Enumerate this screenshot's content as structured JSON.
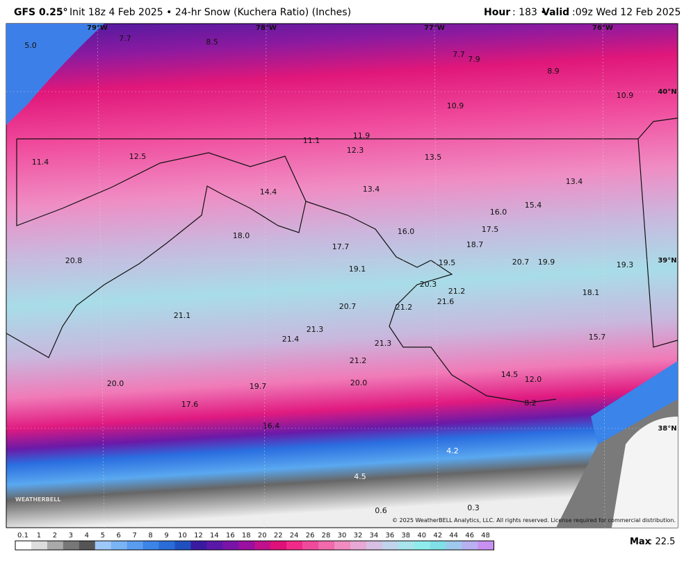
{
  "header": {
    "title_bold": "GFS 0.25°",
    "title_rest": "Init 18z 4 Feb 2025 • 24-hr Snow (Kuchera Ratio) (Inches)",
    "hour_label": "Hour",
    "hour_text": ": 183 •",
    "valid_label": "Valid",
    "valid_text": ":09z Wed 12 Feb 2025"
  },
  "map": {
    "lon_labels": [
      "79°W",
      "78°W",
      "77°W",
      "76°W"
    ],
    "lat_labels": [
      "40°N",
      "39°N",
      "38°N"
    ],
    "points": [
      "5.0",
      "7.7",
      "8.5",
      "7.7",
      "7.9",
      "8.9",
      "10.9",
      "10.9",
      "11.1",
      "11.9",
      "12.3",
      "11.4",
      "12.5",
      "13.5",
      "13.4",
      "14.4",
      "13.4",
      "16.0",
      "15.4",
      "16.0",
      "17.5",
      "18.0",
      "17.7",
      "18.7",
      "20.8",
      "19.1",
      "19.5",
      "20.7",
      "19.9",
      "19.3",
      "20.3",
      "21.2",
      "21.6",
      "18.1",
      "20.7",
      "21.2",
      "21.1",
      "21.3",
      "21.4",
      "21.3",
      "15.7",
      "21.2",
      "14.5",
      "12.0",
      "20.0",
      "19.7",
      "20.0",
      "8.2",
      "17.6",
      "16.4",
      "4.2",
      "4.5",
      "0.6",
      "0.3"
    ],
    "logo": "WEATHERBELL",
    "copyright": "© 2025 WeatherBELL Analytics, LLC. All rights reserved. License required for commercial distribution."
  },
  "colorbar": {
    "labels": [
      "0.1",
      "1",
      "2",
      "3",
      "4",
      "5",
      "6",
      "7",
      "8",
      "9",
      "10",
      "12",
      "14",
      "16",
      "18",
      "20",
      "22",
      "24",
      "26",
      "28",
      "30",
      "32",
      "34",
      "36",
      "38",
      "40",
      "42",
      "44",
      "46",
      "48"
    ]
  },
  "footer": {
    "max_label": "Max",
    "max_value": ": 22.5"
  }
}
